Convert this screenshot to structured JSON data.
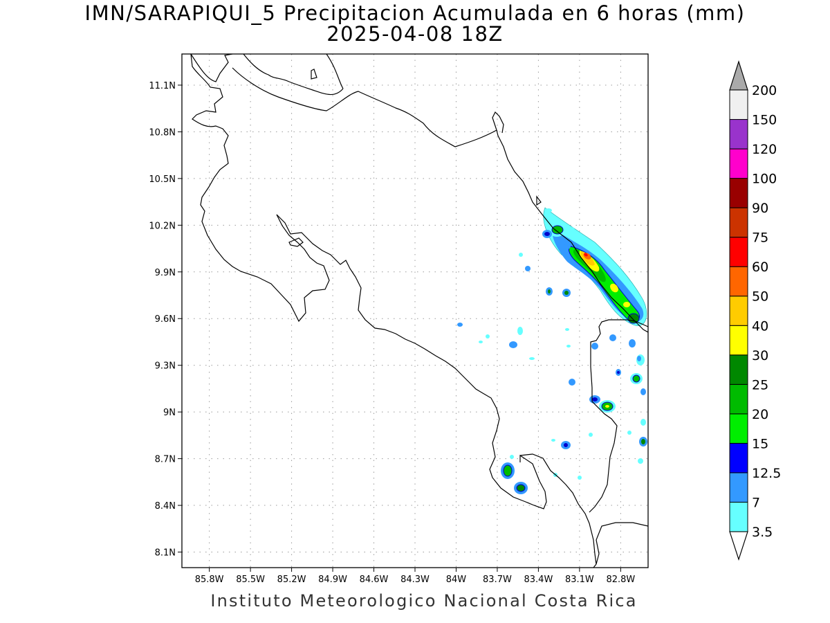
{
  "title": "IMN/SARAPIQUI_5 Precipitacion Acumulada en 6 horas (mm)",
  "subtitle": "2025-04-08 18Z",
  "credit": "Instituto Meteorologico Nacional Costa Rica",
  "map": {
    "lon_range": [
      -86.0,
      -82.6
    ],
    "lat_range": [
      8.0,
      11.3
    ],
    "grid": true,
    "lon_ticks": [
      {
        "value": -85.8,
        "label": "85.8W"
      },
      {
        "value": -85.5,
        "label": "85.5W"
      },
      {
        "value": -85.2,
        "label": "85.2W"
      },
      {
        "value": -84.9,
        "label": "84.9W"
      },
      {
        "value": -84.6,
        "label": "84.6W"
      },
      {
        "value": -84.3,
        "label": "84.3W"
      },
      {
        "value": -84.0,
        "label": "84W"
      },
      {
        "value": -83.7,
        "label": "83.7W"
      },
      {
        "value": -83.4,
        "label": "83.4W"
      },
      {
        "value": -83.1,
        "label": "83.1W"
      },
      {
        "value": -82.8,
        "label": "82.8W"
      }
    ],
    "lat_ticks": [
      {
        "value": 11.1,
        "label": "11.1N"
      },
      {
        "value": 10.8,
        "label": "10.8N"
      },
      {
        "value": 10.5,
        "label": "10.5N"
      },
      {
        "value": 10.2,
        "label": "10.2N"
      },
      {
        "value": 9.9,
        "label": "9.9N"
      },
      {
        "value": 9.6,
        "label": "9.6N"
      },
      {
        "value": 9.3,
        "label": "9.3N"
      },
      {
        "value": 9.0,
        "label": "9N"
      },
      {
        "value": 8.7,
        "label": "8.7N"
      },
      {
        "value": 8.4,
        "label": "8.4N"
      },
      {
        "value": 8.1,
        "label": "8.1N"
      }
    ]
  },
  "colorbar": {
    "levels": [
      "3.5",
      "7",
      "12.5",
      "15",
      "20",
      "25",
      "30",
      "40",
      "50",
      "60",
      "75",
      "90",
      "100",
      "120",
      "150",
      "200"
    ],
    "colors": [
      "#66ffff",
      "#3399ff",
      "#0000ff",
      "#00ee00",
      "#00bb00",
      "#008800",
      "#ffff00",
      "#ffcc00",
      "#ff6600",
      "#ff0000",
      "#cc3300",
      "#990000",
      "#ff00cc",
      "#9933cc",
      "#f0f0f0",
      "#aaaaaa"
    ]
  }
}
